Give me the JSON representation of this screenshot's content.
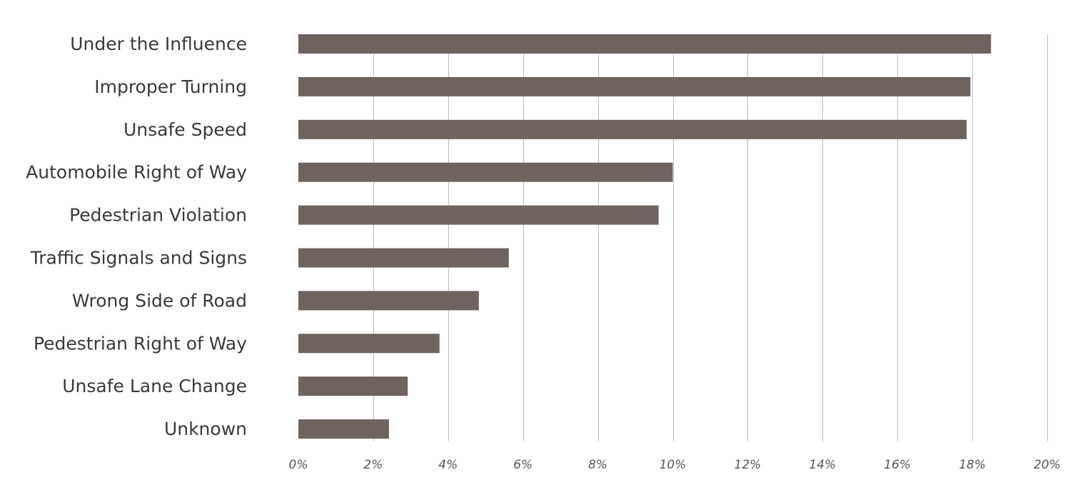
{
  "chart_data": {
    "type": "bar",
    "orientation": "horizontal",
    "categories": [
      "Under the Influence",
      "Improper Turning",
      "Unsafe Speed",
      "Automobile Right of Way",
      "Pedestrian Violation",
      "Traffic Signals and Signs",
      "Wrong Side of Road",
      "Pedestrian Right of Way",
      "Unsafe Lane Change",
      "Unknown"
    ],
    "values": [
      18.5,
      17.95,
      17.85,
      10.0,
      9.62,
      5.62,
      4.82,
      3.77,
      2.92,
      2.42
    ],
    "xlim": [
      0,
      20
    ],
    "ticks": [
      0,
      2,
      4,
      6,
      8,
      10,
      12,
      14,
      16,
      18,
      20
    ],
    "tick_labels": [
      "0%",
      "2%",
      "4%",
      "6%",
      "8%",
      "10%",
      "12%",
      "14%",
      "16%",
      "18%",
      "20%"
    ],
    "title": "",
    "xlabel": "",
    "ylabel": "",
    "grid": true,
    "bar_color": "#6e635e"
  }
}
